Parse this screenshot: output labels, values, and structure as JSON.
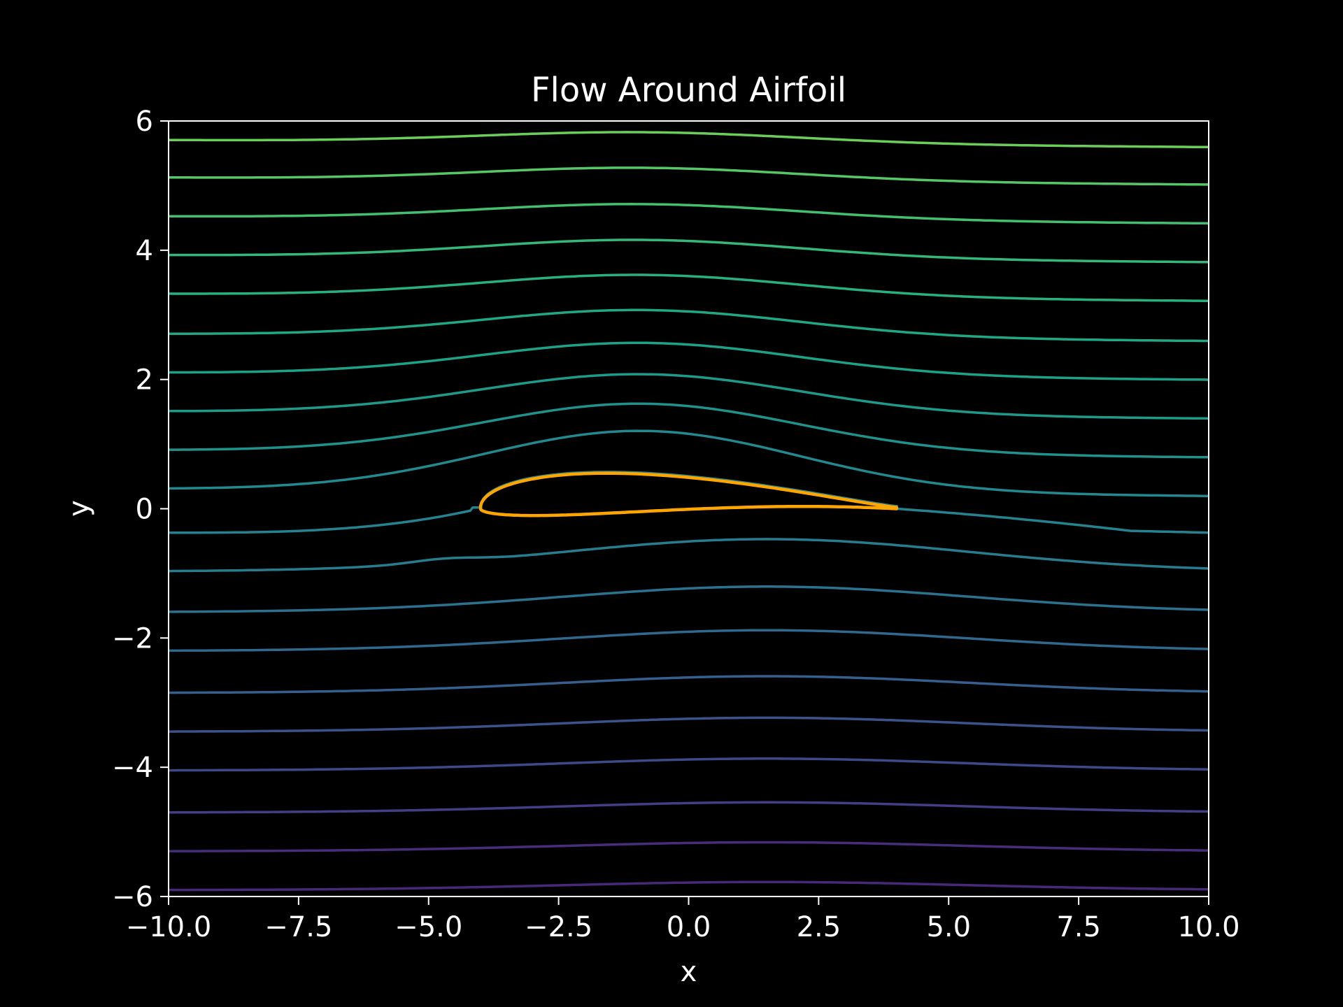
{
  "chart_data": {
    "type": "contour",
    "title": "Flow Around Airfoil",
    "xlabel": "x",
    "ylabel": "y",
    "xlim": [
      -10,
      10
    ],
    "ylim": [
      -6,
      6
    ],
    "xticks": [
      -10,
      -7.5,
      -5,
      -2.5,
      0,
      2.5,
      5,
      7.5,
      10
    ],
    "xtick_labels": [
      "−10.0",
      "−7.5",
      "−5.0",
      "−2.5",
      "0.0",
      "2.5",
      "5.0",
      "7.5",
      "10.0"
    ],
    "yticks": [
      -6,
      -4,
      -2,
      0,
      2,
      4,
      6
    ],
    "ytick_labels": [
      "−6",
      "−4",
      "−2",
      "0",
      "2",
      "4",
      "6"
    ],
    "grid": false,
    "colormap": "viridis",
    "background": "#000000",
    "foreground": "#ffffff",
    "streamlines": [
      {
        "y_far": -5.9,
        "shape": "lower",
        "color": "#482878"
      },
      {
        "y_far": -5.3,
        "shape": "lower",
        "color": "#472d7b"
      },
      {
        "y_far": -4.7,
        "shape": "lower",
        "color": "#433e85"
      },
      {
        "y_far": -4.05,
        "shape": "lower",
        "color": "#3e4989"
      },
      {
        "y_far": -3.45,
        "shape": "lower",
        "color": "#3b528b"
      },
      {
        "y_far": -2.85,
        "shape": "lower",
        "color": "#355f8d"
      },
      {
        "y_far": -2.2,
        "shape": "lower",
        "color": "#31688e"
      },
      {
        "y_far": -1.6,
        "shape": "lower",
        "color": "#2c728e"
      },
      {
        "y_far": -0.97,
        "shape": "lower",
        "color": "#297b8e"
      },
      {
        "y_far": -0.37,
        "shape": "stagnation",
        "color": "#26828e"
      },
      {
        "y_far": 0.25,
        "shape": "upper",
        "color": "#23898e"
      },
      {
        "y_far": 0.85,
        "shape": "upper",
        "color": "#21918c"
      },
      {
        "y_far": 1.45,
        "shape": "upper",
        "color": "#1f9a8a"
      },
      {
        "y_far": 2.05,
        "shape": "upper",
        "color": "#1fa188"
      },
      {
        "y_far": 2.65,
        "shape": "upper",
        "color": "#22a785"
      },
      {
        "y_far": 3.27,
        "shape": "upper",
        "color": "#2ab07f"
      },
      {
        "y_far": 3.87,
        "shape": "upper",
        "color": "#35b779"
      },
      {
        "y_far": 4.47,
        "shape": "upper",
        "color": "#44bf70"
      },
      {
        "y_far": 5.07,
        "shape": "upper",
        "color": "#56c667"
      },
      {
        "y_far": 5.65,
        "shape": "upper",
        "color": "#6ccd5a"
      }
    ],
    "airfoil": {
      "leading_edge": [
        -4,
        0
      ],
      "trailing_edge": [
        4,
        0
      ],
      "color": "#ffa500"
    }
  }
}
